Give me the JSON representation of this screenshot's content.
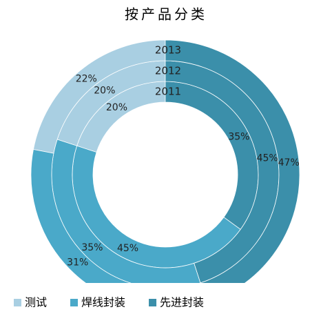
{
  "chart_data": {
    "type": "multi-donut",
    "title": "按产品分类",
    "categories": [
      "测试",
      "焊线封装",
      "先进封装"
    ],
    "colors": [
      "#a9cfe2",
      "#4aa9c9",
      "#3b8faa"
    ],
    "series": [
      {
        "name": "2011",
        "values": [
          20,
          45,
          35
        ],
        "value_labels": [
          "20%",
          "45%",
          "35%"
        ]
      },
      {
        "name": "2012",
        "values": [
          20,
          35,
          45
        ],
        "value_labels": [
          "20%",
          "35%",
          "45%"
        ]
      },
      {
        "name": "2013",
        "values": [
          22,
          31,
          47
        ],
        "value_labels": [
          "22%",
          "31%",
          "47%"
        ]
      }
    ]
  }
}
